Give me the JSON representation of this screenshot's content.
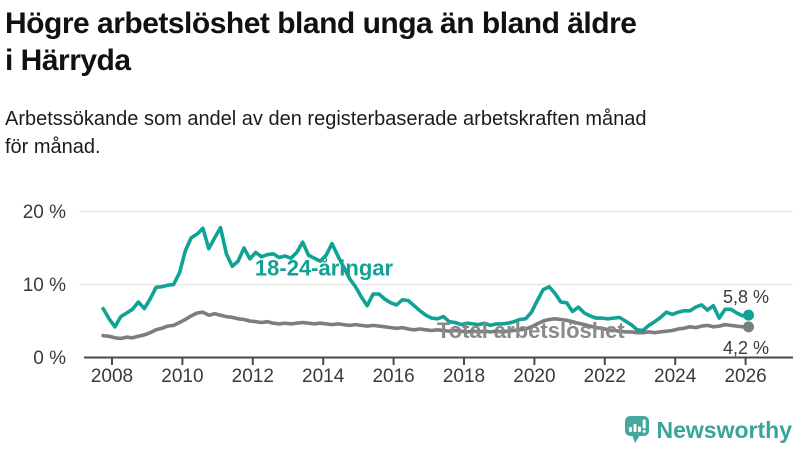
{
  "header": {
    "title": "Högre arbetslöshet bland unga än bland äldre i Härryda",
    "subtitle": "Arbetssökande som andel av den registerbaserade arbetskraften månad för månad."
  },
  "footer": {
    "brand": "Newsworthy",
    "icon": "bar-chart-speech-bubble-icon"
  },
  "colors": {
    "accent_teal": "#10a294",
    "series_gray": "#7d7d7d",
    "series_gray_label": "#8a8a8a",
    "axis": "#4a4a4a",
    "tick_text": "#3a3a3a",
    "grid": "#e4e4e4",
    "logo_teal": "#46a79e",
    "logo_text_teal": "#3aa49b",
    "title_text": "#111111"
  },
  "chart_data": {
    "type": "line",
    "title": "Högre arbetslöshet bland unga än bland äldre i Härryda",
    "subtitle": "Arbetssökande som andel av den registerbaserade arbetskraften månad för månad.",
    "xlabel": "",
    "ylabel": "",
    "grid": "horizontal",
    "legend_position": "inline-labels",
    "xlim": [
      2007.6,
      2026.4
    ],
    "ylim": [
      0,
      21.5
    ],
    "x_ticks": [
      "2008",
      "2010",
      "2012",
      "2014",
      "2016",
      "2018",
      "2020",
      "2022",
      "2024",
      "2026"
    ],
    "x_tick_years": [
      2008,
      2010,
      2012,
      2014,
      2016,
      2018,
      2020,
      2022,
      2024,
      2026
    ],
    "y_ticks": [
      {
        "v": 0,
        "label": "0 %"
      },
      {
        "v": 10,
        "label": "10 %"
      },
      {
        "v": 20,
        "label": "20 %"
      }
    ],
    "series": [
      {
        "id": "youth",
        "name": "18-24-åringar",
        "color": "#10a294",
        "label": {
          "text": "18-24-åringar",
          "year": 2012.06,
          "value": 11.2
        },
        "end": {
          "label": "5,8 %",
          "value": 5.8
        },
        "start": 2007.75,
        "step_years": 0.1666667,
        "values": [
          6.7,
          5.3,
          4.2,
          5.6,
          6.1,
          6.6,
          7.6,
          6.7,
          8.0,
          9.6,
          9.7,
          9.9,
          10.0,
          11.6,
          14.6,
          16.4,
          16.9,
          17.7,
          14.9,
          16.4,
          17.8,
          14.2,
          12.5,
          13.2,
          15.0,
          13.5,
          14.4,
          13.8,
          14.1,
          14.2,
          13.7,
          13.9,
          13.6,
          14.4,
          15.8,
          14.0,
          13.6,
          13.2,
          14.0,
          15.6,
          13.9,
          12.4,
          10.8,
          9.7,
          8.3,
          7.1,
          8.7,
          8.7,
          8.0,
          7.5,
          7.2,
          7.9,
          7.8,
          7.1,
          6.4,
          5.8,
          5.4,
          5.3,
          5.6,
          4.9,
          4.8,
          4.5,
          4.7,
          4.6,
          4.5,
          4.7,
          4.4,
          4.6,
          4.6,
          4.7,
          4.9,
          5.2,
          5.3,
          6.2,
          7.8,
          9.3,
          9.7,
          8.8,
          7.6,
          7.5,
          6.3,
          6.9,
          6.1,
          5.7,
          5.4,
          5.4,
          5.3,
          5.4,
          5.5,
          5.0,
          4.5,
          3.8,
          3.7,
          4.4,
          4.9,
          5.5,
          6.2,
          5.9,
          6.2,
          6.4,
          6.4,
          6.9,
          7.2,
          6.5,
          7.1,
          5.4,
          6.6,
          6.6,
          6.1,
          5.7,
          5.8
        ]
      },
      {
        "id": "total",
        "name": "Total arbetslöshet",
        "color": "#7d7d7d",
        "label_color": "#8a8a8a",
        "label": {
          "text": "Total arbetslöshet",
          "year": 2017.23,
          "value": 2.7
        },
        "end": {
          "label": "4,2 %",
          "value": 4.2
        },
        "start": 2007.75,
        "step_years": 0.1666667,
        "values": [
          3.0,
          2.9,
          2.7,
          2.6,
          2.8,
          2.7,
          2.9,
          3.1,
          3.4,
          3.8,
          4.0,
          4.3,
          4.4,
          4.8,
          5.2,
          5.7,
          6.1,
          6.2,
          5.8,
          6.0,
          5.8,
          5.6,
          5.5,
          5.3,
          5.2,
          5.0,
          4.9,
          4.8,
          4.9,
          4.7,
          4.6,
          4.7,
          4.6,
          4.7,
          4.8,
          4.7,
          4.6,
          4.7,
          4.6,
          4.5,
          4.6,
          4.5,
          4.4,
          4.5,
          4.4,
          4.3,
          4.4,
          4.3,
          4.2,
          4.1,
          4.0,
          4.1,
          3.9,
          3.8,
          3.9,
          3.8,
          3.7,
          3.8,
          3.7,
          3.6,
          3.7,
          3.6,
          3.5,
          3.6,
          3.5,
          3.6,
          3.5,
          3.6,
          3.5,
          3.6,
          3.7,
          3.8,
          3.9,
          4.2,
          4.6,
          5.0,
          5.2,
          5.3,
          5.2,
          5.1,
          4.9,
          4.7,
          4.5,
          4.3,
          4.1,
          4.0,
          3.8,
          3.7,
          3.6,
          3.5,
          3.5,
          3.4,
          3.4,
          3.5,
          3.4,
          3.5,
          3.6,
          3.7,
          3.9,
          4.0,
          4.2,
          4.1,
          4.3,
          4.4,
          4.2,
          4.3,
          4.5,
          4.4,
          4.3,
          4.2,
          4.2
        ]
      }
    ]
  }
}
